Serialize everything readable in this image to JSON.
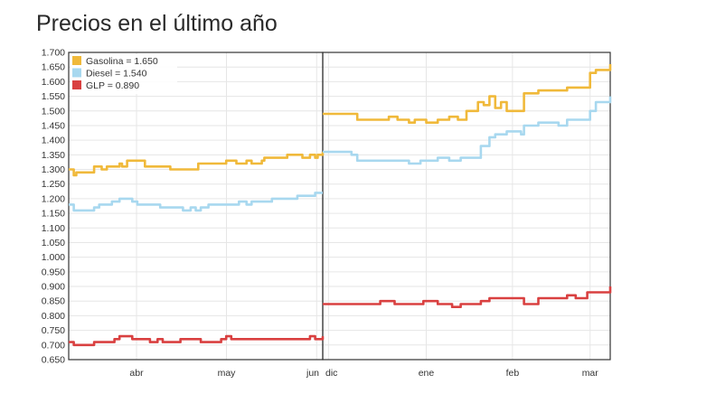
{
  "title": "Precios en el último año",
  "chart_data": {
    "type": "line",
    "title": "Precios en el último año",
    "ylim": [
      0.65,
      1.7
    ],
    "yticks": [
      "1.700",
      "1.650",
      "1.600",
      "1.550",
      "1.500",
      "1.450",
      "1.400",
      "1.350",
      "1.300",
      "1.250",
      "1.200",
      "1.150",
      "1.100",
      "1.050",
      "1.000",
      "0.950",
      "0.900",
      "0.850",
      "0.800",
      "0.750",
      "0.700",
      "0.650"
    ],
    "grid": true,
    "legend_position": "top-left",
    "legend": [
      {
        "label": "Gasolina = 1.650",
        "color": "#f0b93a"
      },
      {
        "label": "Diesel = 1.540",
        "color": "#a8d8ef"
      },
      {
        "label": "GLP = 0.890",
        "color": "#d94040"
      }
    ],
    "panels": [
      {
        "xticks": [
          "abr",
          "may",
          "jun"
        ],
        "tick_positions": [
          0.267,
          0.621,
          0.976
        ],
        "series": [
          {
            "name": "Gasolina",
            "color": "#f0b93a",
            "x": [
              0,
              0.02,
              0.03,
              0.09,
              0.1,
              0.13,
              0.15,
              0.2,
              0.21,
              0.23,
              0.27,
              0.3,
              0.34,
              0.4,
              0.47,
              0.5,
              0.51,
              0.58,
              0.62,
              0.66,
              0.67,
              0.7,
              0.72,
              0.76,
              0.77,
              0.81,
              0.86,
              0.92,
              0.95,
              0.97,
              0.98,
              1.0
            ],
            "y": [
              1.3,
              1.28,
              1.29,
              1.29,
              1.31,
              1.3,
              1.31,
              1.32,
              1.31,
              1.33,
              1.33,
              1.31,
              1.31,
              1.3,
              1.3,
              1.3,
              1.32,
              1.32,
              1.33,
              1.32,
              1.32,
              1.33,
              1.32,
              1.33,
              1.34,
              1.34,
              1.35,
              1.34,
              1.35,
              1.34,
              1.35,
              1.36
            ]
          },
          {
            "name": "Diesel",
            "color": "#a8d8ef",
            "x": [
              0,
              0.02,
              0.1,
              0.12,
              0.17,
              0.2,
              0.25,
              0.27,
              0.34,
              0.36,
              0.44,
              0.45,
              0.48,
              0.5,
              0.52,
              0.55,
              0.58,
              0.66,
              0.67,
              0.7,
              0.72,
              0.76,
              0.8,
              0.86,
              0.9,
              0.95,
              0.97,
              1.0
            ],
            "y": [
              1.18,
              1.16,
              1.17,
              1.18,
              1.19,
              1.2,
              1.19,
              1.18,
              1.18,
              1.17,
              1.17,
              1.16,
              1.17,
              1.16,
              1.17,
              1.18,
              1.18,
              1.18,
              1.19,
              1.18,
              1.19,
              1.19,
              1.2,
              1.2,
              1.21,
              1.21,
              1.22,
              1.22
            ]
          },
          {
            "name": "GLP",
            "color": "#d94040",
            "x": [
              0,
              0.02,
              0.1,
              0.15,
              0.18,
              0.2,
              0.25,
              0.3,
              0.32,
              0.35,
              0.37,
              0.4,
              0.44,
              0.5,
              0.52,
              0.6,
              0.62,
              0.64,
              0.66,
              0.7,
              0.8,
              0.9,
              0.95,
              0.97,
              1.0
            ],
            "y": [
              0.71,
              0.7,
              0.71,
              0.71,
              0.72,
              0.73,
              0.72,
              0.72,
              0.71,
              0.72,
              0.71,
              0.71,
              0.72,
              0.72,
              0.71,
              0.72,
              0.73,
              0.72,
              0.72,
              0.72,
              0.72,
              0.72,
              0.73,
              0.72,
              0.73
            ]
          }
        ]
      },
      {
        "xticks": [
          "dic",
          "ene",
          "feb",
          "mar"
        ],
        "tick_positions": [
          0.02,
          0.36,
          0.66,
          0.93
        ],
        "series": [
          {
            "name": "Gasolina",
            "color": "#f0b93a",
            "x": [
              0,
              0.1,
              0.12,
              0.2,
              0.23,
              0.26,
              0.3,
              0.32,
              0.36,
              0.4,
              0.44,
              0.47,
              0.5,
              0.54,
              0.56,
              0.58,
              0.6,
              0.62,
              0.64,
              0.66,
              0.69,
              0.7,
              0.75,
              0.8,
              0.85,
              0.9,
              0.93,
              0.95,
              1.0
            ],
            "y": [
              1.49,
              1.49,
              1.47,
              1.47,
              1.48,
              1.47,
              1.46,
              1.47,
              1.46,
              1.47,
              1.48,
              1.47,
              1.5,
              1.53,
              1.52,
              1.55,
              1.51,
              1.53,
              1.5,
              1.5,
              1.5,
              1.56,
              1.57,
              1.57,
              1.58,
              1.58,
              1.63,
              1.64,
              1.66
            ]
          },
          {
            "name": "Diesel",
            "color": "#a8d8ef",
            "x": [
              0,
              0.1,
              0.12,
              0.2,
              0.3,
              0.34,
              0.36,
              0.4,
              0.44,
              0.48,
              0.55,
              0.58,
              0.6,
              0.64,
              0.69,
              0.7,
              0.75,
              0.8,
              0.82,
              0.85,
              0.9,
              0.93,
              0.95,
              1.0
            ],
            "y": [
              1.36,
              1.35,
              1.33,
              1.33,
              1.32,
              1.33,
              1.33,
              1.34,
              1.33,
              1.34,
              1.38,
              1.41,
              1.42,
              1.43,
              1.42,
              1.45,
              1.46,
              1.46,
              1.45,
              1.47,
              1.47,
              1.5,
              1.53,
              1.55
            ]
          },
          {
            "name": "GLP",
            "color": "#d94040",
            "x": [
              0,
              0.1,
              0.15,
              0.2,
              0.25,
              0.3,
              0.35,
              0.4,
              0.45,
              0.48,
              0.5,
              0.55,
              0.58,
              0.6,
              0.64,
              0.7,
              0.75,
              0.8,
              0.85,
              0.88,
              0.92,
              0.95,
              1.0
            ],
            "y": [
              0.84,
              0.84,
              0.84,
              0.85,
              0.84,
              0.84,
              0.85,
              0.84,
              0.83,
              0.84,
              0.84,
              0.85,
              0.86,
              0.86,
              0.86,
              0.84,
              0.86,
              0.86,
              0.87,
              0.86,
              0.88,
              0.88,
              0.9
            ]
          }
        ]
      }
    ]
  }
}
